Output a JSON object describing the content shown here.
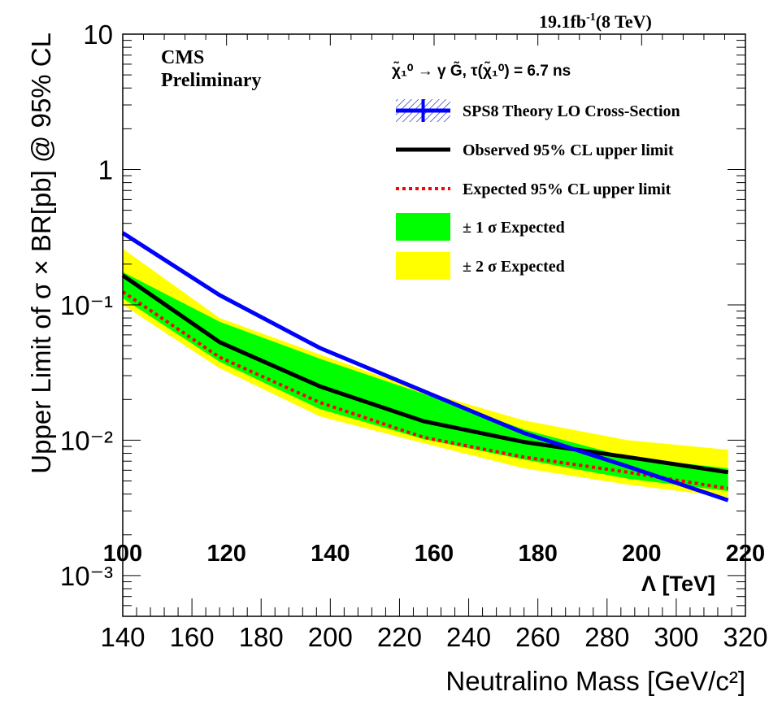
{
  "chart_data": {
    "type": "line",
    "lumi_label": "19.1fb",
    "lumi_sup": "-1",
    "lumi_energy": "(8 TeV)",
    "cms_label": "CMS",
    "prelim_label": "Preliminary",
    "process_label": "χ̃₁⁰ → γ G̃,  τ(χ̃₁⁰)  = 6.7 ns",
    "ylabel": "Upper Limit of σ × BR[pb] @ 95% CL",
    "xlabel": "Neutralino Mass [GeV/c²]",
    "x2label": "Λ [TeV]",
    "yscale": "log",
    "ylim": [
      0.0005,
      10
    ],
    "xlim": [
      140,
      320
    ],
    "x2lim": [
      100,
      220
    ],
    "y_ticks": [
      {
        "v": 10,
        "label": "10"
      },
      {
        "v": 1,
        "label": "1"
      },
      {
        "v": 0.1,
        "label": "10⁻¹"
      },
      {
        "v": 0.01,
        "label": "10⁻²"
      },
      {
        "v": 0.001,
        "label": "10⁻³"
      }
    ],
    "x_ticks": [
      140,
      160,
      180,
      200,
      220,
      240,
      260,
      280,
      300,
      320
    ],
    "x2_ticks": [
      100,
      120,
      140,
      160,
      180,
      200,
      220
    ],
    "x": [
      140,
      168,
      197,
      227,
      256,
      286,
      315
    ],
    "series": [
      {
        "name": "SPS8 Theory LO Cross-Section",
        "color": "#0000ff",
        "style": "solid-thick",
        "values": [
          0.34,
          0.118,
          0.048,
          0.023,
          0.0113,
          0.0064,
          0.0036
        ]
      },
      {
        "name": "Observed  95% CL upper limit",
        "color": "#000000",
        "style": "solid",
        "values": [
          0.165,
          0.053,
          0.025,
          0.0138,
          0.0097,
          0.0075,
          0.0058
        ]
      },
      {
        "name": "Expected 95% CL upper limit",
        "color": "#ff0000",
        "style": "dotted",
        "values": [
          0.125,
          0.041,
          0.019,
          0.0105,
          0.0075,
          0.0058,
          0.0044
        ]
      }
    ],
    "bands": [
      {
        "name": "± 2 σ Expected",
        "color": "#ffff00",
        "upper": [
          0.26,
          0.08,
          0.043,
          0.023,
          0.014,
          0.01,
          0.0085
        ],
        "lower": [
          0.1,
          0.034,
          0.015,
          0.0095,
          0.0062,
          0.0047,
          0.0038
        ]
      },
      {
        "name": "± 1 σ Expected",
        "color": "#00ff00",
        "upper": [
          0.175,
          0.075,
          0.04,
          0.022,
          0.012,
          0.0075,
          0.0062
        ],
        "lower": [
          0.112,
          0.038,
          0.017,
          0.0102,
          0.0072,
          0.0052,
          0.0042
        ]
      }
    ],
    "legend": [
      {
        "label": "SPS8 Theory LO Cross-Section",
        "kind": "theory"
      },
      {
        "label": "Observed  95% CL upper limit",
        "kind": "observed"
      },
      {
        "label": "Expected 95% CL upper limit",
        "kind": "expected"
      },
      {
        "label": "± 1 σ Expected",
        "kind": "band1"
      },
      {
        "label": "± 2 σ Expected",
        "kind": "band2"
      }
    ],
    "grid": false,
    "legend_position": "top-right"
  }
}
